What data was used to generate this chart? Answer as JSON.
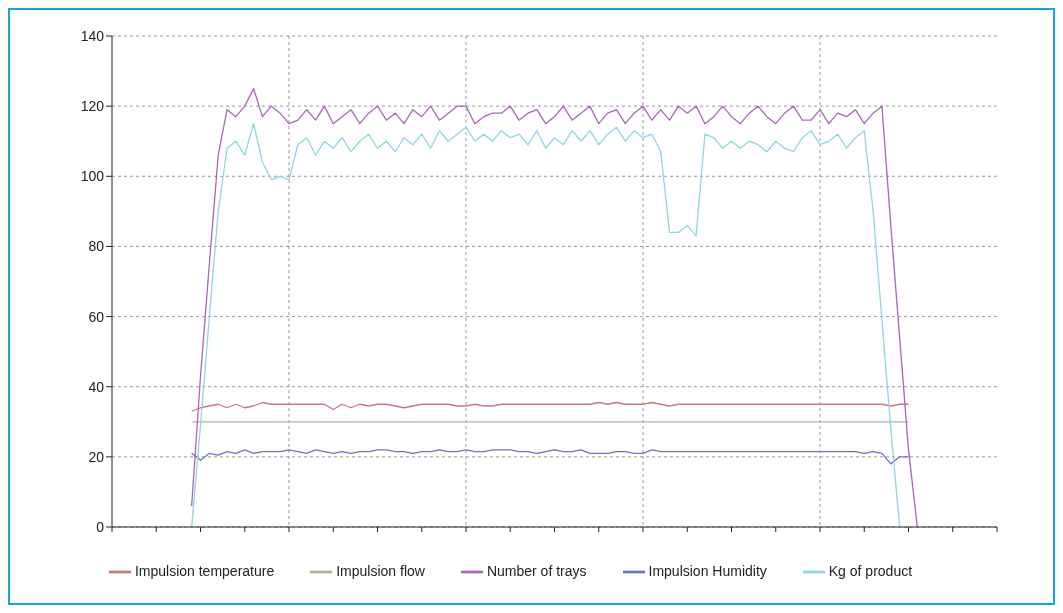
{
  "chart_data": {
    "type": "line",
    "categories": [
      null,
      null,
      null,
      null,
      null,
      null,
      null,
      null,
      null,
      null,
      null,
      null,
      null,
      null,
      null,
      null,
      null,
      null,
      null,
      null,
      null,
      null,
      null,
      null,
      null,
      null,
      null,
      null,
      null,
      null,
      null,
      null,
      null,
      null,
      null,
      null,
      null,
      null,
      null,
      null,
      null,
      null,
      null,
      null,
      null,
      null,
      null,
      null,
      null,
      null,
      null,
      null,
      null,
      null,
      null,
      null,
      null,
      null,
      null,
      null,
      null,
      null,
      null,
      null,
      null,
      null,
      null,
      null,
      null,
      null,
      null,
      null,
      null,
      null,
      null,
      null,
      null,
      null,
      null,
      null,
      null,
      null,
      null,
      null,
      null,
      null,
      null,
      null,
      null,
      null,
      null,
      null,
      null,
      null,
      null,
      null,
      null,
      null,
      null,
      null,
      null
    ],
    "series": [
      {
        "name": "Impulsion temperature",
        "color": "#c77a7a",
        "values": [
          null,
          null,
          null,
          null,
          null,
          null,
          null,
          null,
          null,
          33,
          34,
          34.5,
          35,
          34,
          35,
          34,
          34.5,
          35.5,
          35,
          35,
          35,
          35,
          35,
          35,
          35,
          33.5,
          35,
          34,
          35,
          34.5,
          35,
          35,
          34.5,
          34,
          34.5,
          35,
          35,
          35,
          35,
          34.5,
          34.5,
          35,
          34.5,
          34.5,
          35,
          35,
          35,
          35,
          35,
          35,
          35,
          35,
          35,
          35,
          35,
          35.5,
          35,
          35.5,
          35,
          35,
          35,
          35.5,
          35,
          34.5,
          35,
          35,
          35,
          35,
          35,
          35,
          35,
          35,
          35,
          35,
          35,
          35,
          35,
          35,
          35,
          35,
          35,
          35,
          35,
          35,
          35,
          35,
          35,
          35,
          34.5,
          35,
          35,
          null,
          null,
          null,
          null,
          null,
          null,
          null,
          null,
          null,
          null
        ]
      },
      {
        "name": "Impulsion flow",
        "color": "#aab89a",
        "values": [
          null,
          null,
          null,
          null,
          null,
          null,
          null,
          null,
          null,
          30,
          30,
          30,
          30,
          30,
          30,
          30,
          30,
          30,
          30,
          30,
          30,
          30,
          30,
          30,
          30,
          30,
          30,
          30,
          30,
          30,
          30,
          30,
          30,
          30,
          30,
          30,
          30,
          30,
          30,
          30,
          30,
          30,
          30,
          30,
          30,
          30,
          30,
          30,
          30,
          30,
          30,
          30,
          30,
          30,
          30,
          30,
          30,
          30,
          30,
          30,
          30,
          30,
          30,
          30,
          30,
          30,
          30,
          30,
          30,
          30,
          30,
          30,
          30,
          30,
          30,
          30,
          30,
          30,
          30,
          30,
          30,
          30,
          30,
          30,
          30,
          30,
          30,
          30,
          30,
          30,
          30,
          null,
          null,
          null,
          null,
          null,
          null,
          null,
          null,
          null,
          null
        ]
      },
      {
        "name": "Number of trays",
        "color": "#a866b5",
        "values": [
          null,
          null,
          null,
          null,
          null,
          null,
          null,
          null,
          null,
          6,
          43,
          75,
          106,
          119,
          117,
          120,
          125,
          117,
          120,
          118,
          115,
          116,
          119,
          116,
          120,
          115,
          117,
          119,
          115,
          118,
          120,
          116,
          118,
          115,
          119,
          117,
          120,
          116,
          118,
          120,
          120,
          115,
          117,
          118,
          118,
          120,
          116,
          118,
          119,
          115,
          117,
          120,
          116,
          118,
          120,
          115,
          118,
          119,
          115,
          118,
          120,
          116,
          119,
          116,
          120,
          118,
          120,
          115,
          117,
          120,
          117,
          115,
          118,
          120,
          117,
          115,
          118,
          120,
          116,
          116,
          119,
          115,
          118,
          117,
          119,
          115,
          118,
          120,
          86,
          54,
          22,
          0,
          null,
          null,
          null,
          null,
          null,
          null,
          null,
          null,
          null
        ]
      },
      {
        "name": "Impulsion Humidity",
        "color": "#6f73c4",
        "values": [
          null,
          null,
          null,
          null,
          null,
          null,
          null,
          null,
          null,
          21,
          19,
          21,
          20.5,
          21.5,
          21,
          22,
          21,
          21.5,
          21.5,
          21.5,
          22,
          21.5,
          21,
          22,
          21.5,
          21,
          21.5,
          21,
          21.5,
          21.5,
          22,
          22,
          21.5,
          21.5,
          21,
          21.5,
          21.5,
          22,
          21.5,
          21.5,
          22,
          21.5,
          21.5,
          22,
          22,
          22,
          21.5,
          21.5,
          21,
          21.5,
          22,
          21.5,
          21.5,
          22,
          21,
          21,
          21,
          21.5,
          21.5,
          21,
          21,
          22,
          21.5,
          21.5,
          21.5,
          21.5,
          21.5,
          21.5,
          21.5,
          21.5,
          21.5,
          21.5,
          21.5,
          21.5,
          21.5,
          21.5,
          21.5,
          21.5,
          21.5,
          21.5,
          21.5,
          21.5,
          21.5,
          21.5,
          21.5,
          21,
          21.5,
          21,
          18,
          20,
          20,
          null,
          null,
          null,
          null,
          null,
          null,
          null,
          null,
          null,
          null
        ]
      },
      {
        "name": "Kg of product",
        "color": "#8fd6e0",
        "values": [
          null,
          null,
          null,
          null,
          null,
          null,
          null,
          null,
          null,
          0,
          29,
          60,
          90,
          108,
          110,
          106,
          115,
          104,
          99,
          100,
          99,
          109,
          111,
          106,
          110,
          108,
          111,
          107,
          110,
          112,
          108,
          110,
          107,
          111,
          109,
          112,
          108,
          113,
          110,
          112,
          114,
          110,
          112,
          110,
          113,
          111,
          112,
          109,
          113,
          108,
          111,
          109,
          113,
          110,
          113,
          109,
          112,
          114,
          110,
          113,
          111,
          112,
          107,
          84,
          84,
          86,
          83,
          112,
          111,
          108,
          110,
          108,
          110,
          109,
          107,
          110,
          108,
          107,
          111,
          113,
          109,
          110,
          112,
          108,
          111,
          113,
          90,
          59,
          28,
          0,
          null,
          null,
          null,
          null,
          null,
          null,
          null,
          null,
          null,
          null,
          null
        ]
      }
    ],
    "ylim": [
      0,
      140
    ],
    "yticks": [
      0,
      20,
      40,
      60,
      80,
      100,
      120,
      140
    ],
    "grid": true,
    "legend": "bottom",
    "tick_labels": "y"
  }
}
